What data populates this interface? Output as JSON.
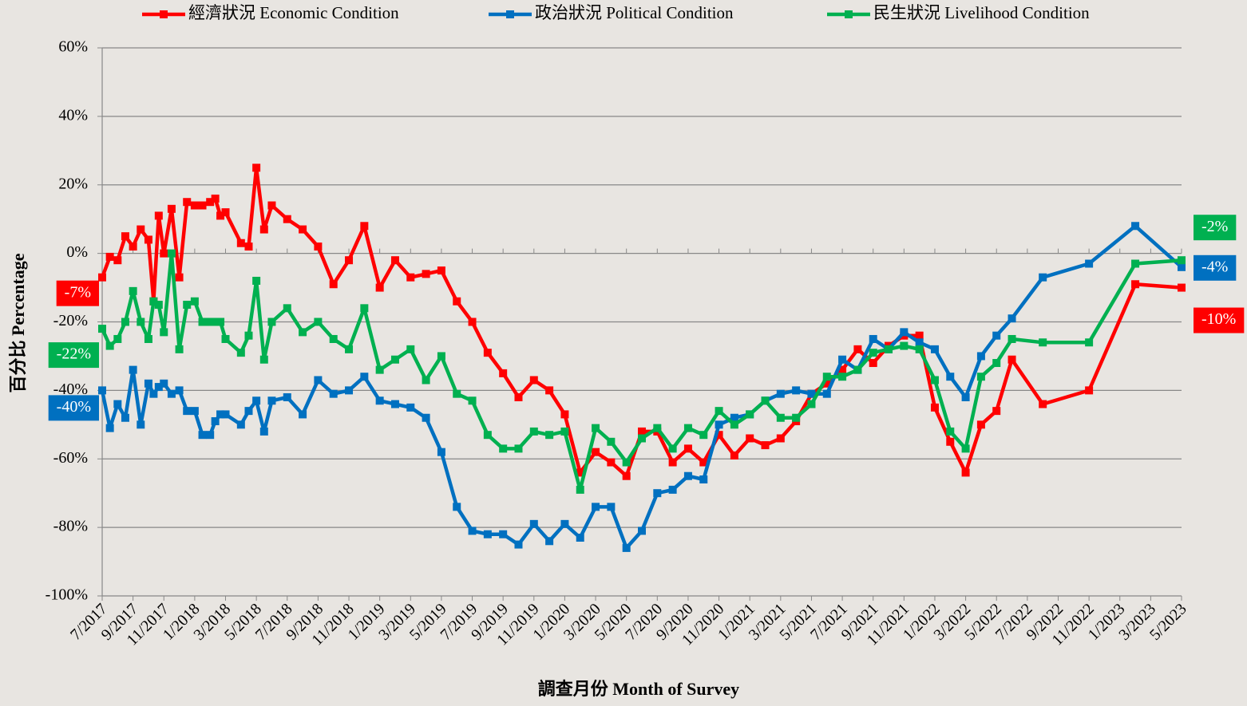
{
  "chart_data": {
    "type": "line",
    "x_label": "調查月份 Month of Survey",
    "y_label": "百分比 Percentage",
    "legend_position": "top",
    "grid": true,
    "ylim": [
      -100,
      60
    ],
    "yticks": [
      {
        "value": -100,
        "label": "-100%"
      },
      {
        "value": -80,
        "label": "-80%"
      },
      {
        "value": -60,
        "label": "-60%"
      },
      {
        "value": -40,
        "label": "-40%"
      },
      {
        "value": -20,
        "label": "-20%"
      },
      {
        "value": 0,
        "label": "0%"
      },
      {
        "value": 20,
        "label": "20%"
      },
      {
        "value": 40,
        "label": "40%"
      },
      {
        "value": 60,
        "label": "60%"
      }
    ],
    "xticks": [
      "7/2017",
      "9/2017",
      "11/2017",
      "1/2018",
      "3/2018",
      "5/2018",
      "7/2018",
      "9/2018",
      "11/2018",
      "1/2019",
      "3/2019",
      "5/2019",
      "7/2019",
      "9/2019",
      "11/2019",
      "1/2020",
      "3/2020",
      "5/2020",
      "7/2020",
      "9/2020",
      "11/2020",
      "1/2021",
      "3/2021",
      "5/2021",
      "7/2021",
      "9/2021",
      "11/2021",
      "1/2022",
      "3/2022",
      "5/2022",
      "7/2022",
      "9/2022",
      "11/2022",
      "1/2023",
      "3/2023",
      "5/2023"
    ],
    "x": [
      "7/2017",
      "7/2017",
      "8/2017",
      "8/2017",
      "9/2017",
      "9/2017",
      "10/2017",
      "10/2017",
      "10/2017",
      "11/2017",
      "11/2017",
      "12/2017",
      "12/2017",
      "1/2018",
      "1/2018",
      "2/2018",
      "2/2018",
      "2/2018",
      "3/2018",
      "4/2018",
      "4/2018",
      "5/2018",
      "5/2018",
      "6/2018",
      "7/2018",
      "8/2018",
      "9/2018",
      "10/2018",
      "11/2018",
      "12/2018",
      "1/2019",
      "2/2019",
      "3/2019",
      "4/2019",
      "5/2019",
      "6/2019",
      "7/2019",
      "8/2019",
      "9/2019",
      "10/2019",
      "11/2019",
      "12/2019",
      "1/2020",
      "2/2020",
      "3/2020",
      "4/2020",
      "5/2020",
      "6/2020",
      "7/2020",
      "8/2020",
      "9/2020",
      "10/2020",
      "11/2020",
      "12/2020",
      "1/2021",
      "2/2021",
      "3/2021",
      "4/2021",
      "5/2021",
      "6/2021",
      "7/2021",
      "8/2021",
      "9/2021",
      "10/2021",
      "11/2021",
      "12/2021",
      "1/2022",
      "2/2022",
      "3/2022",
      "4/2022",
      "5/2022",
      "6/2022",
      "8/2022",
      "11/2022",
      "2/2023",
      "5/2023"
    ],
    "series": [
      {
        "name": "經濟狀況 Economic Condition",
        "color": "#ff0000",
        "values": [
          -7,
          -1,
          -2,
          5,
          2,
          7,
          4,
          -14,
          11,
          0,
          13,
          -7,
          15,
          14,
          14,
          15,
          16,
          11,
          12,
          3,
          2,
          25,
          7,
          14,
          10,
          7,
          2,
          -9,
          -2,
          8,
          -10,
          -2,
          -7,
          -6,
          -5,
          -14,
          -20,
          -29,
          -35,
          -42,
          -37,
          -40,
          -47,
          -64,
          -58,
          -61,
          -65,
          -52,
          -52,
          -61,
          -57,
          -61,
          -53,
          -59,
          -54,
          -56,
          -54,
          -49,
          -41,
          -38,
          -34,
          -28,
          -32,
          -27,
          -24,
          -24,
          -45,
          -55,
          -64,
          -50,
          -46,
          -31,
          -44,
          -40,
          -9,
          -10
        ],
        "value_labels": [
          "-7%",
          null,
          null,
          null,
          null,
          null,
          null,
          null,
          null,
          null,
          null,
          null,
          null,
          null,
          null,
          null,
          null,
          null,
          null,
          null,
          null,
          null,
          null,
          null,
          null,
          null,
          null,
          null,
          null,
          null,
          null,
          null,
          null,
          null,
          null,
          null,
          null,
          null,
          null,
          null,
          null,
          null,
          null,
          null,
          null,
          null,
          null,
          null,
          null,
          null,
          null,
          null,
          null,
          null,
          null,
          null,
          null,
          null,
          null,
          null,
          null,
          null,
          null,
          null,
          null,
          null,
          null,
          null,
          null,
          null,
          null,
          null,
          null,
          null,
          null,
          "-10%"
        ]
      },
      {
        "name": "政治狀況 Political Condition",
        "color": "#0070c0",
        "values": [
          -40,
          -51,
          -44,
          -48,
          -34,
          -50,
          -38,
          -41,
          -39,
          -38,
          -41,
          -40,
          -46,
          -46,
          -53,
          -53,
          -49,
          -47,
          -47,
          -50,
          -46,
          -43,
          -52,
          -43,
          -42,
          -47,
          -37,
          -41,
          -40,
          -36,
          -43,
          -44,
          -45,
          -48,
          -58,
          -74,
          -81,
          -82,
          -82,
          -85,
          -79,
          -84,
          -79,
          -83,
          -74,
          -74,
          -86,
          -81,
          -70,
          -69,
          -65,
          -66,
          -50,
          -48,
          -47,
          -43,
          -41,
          -40,
          -41,
          -41,
          -31,
          -34,
          -25,
          -28,
          -23,
          -26,
          -28,
          -36,
          -42,
          -30,
          -24,
          -19,
          -7,
          -3,
          8,
          -4
        ],
        "value_labels": [
          "-40%",
          null,
          null,
          null,
          null,
          null,
          null,
          null,
          null,
          null,
          null,
          null,
          null,
          null,
          null,
          null,
          null,
          null,
          null,
          null,
          null,
          null,
          null,
          null,
          null,
          null,
          null,
          null,
          null,
          null,
          null,
          null,
          null,
          null,
          null,
          null,
          null,
          null,
          null,
          null,
          null,
          null,
          null,
          null,
          null,
          null,
          null,
          null,
          null,
          null,
          null,
          null,
          null,
          null,
          null,
          null,
          null,
          null,
          null,
          null,
          null,
          null,
          null,
          null,
          null,
          null,
          null,
          null,
          null,
          null,
          null,
          null,
          null,
          null,
          null,
          "-4%"
        ]
      },
      {
        "name": "民生狀況 Livelihood Condition",
        "color": "#00b050",
        "values": [
          -22,
          -27,
          -25,
          -20,
          -11,
          -20,
          -25,
          -14,
          -15,
          -23,
          0,
          -28,
          -15,
          -14,
          -20,
          -20,
          -20,
          -20,
          -25,
          -29,
          -24,
          -8,
          -31,
          -20,
          -16,
          -23,
          -20,
          -25,
          -28,
          -16,
          -34,
          -31,
          -28,
          -37,
          -30,
          -41,
          -43,
          -53,
          -57,
          -57,
          -52,
          -53,
          -52,
          -69,
          -51,
          -55,
          -61,
          -54,
          -51,
          -57,
          -51,
          -53,
          -46,
          -50,
          -47,
          -43,
          -48,
          -48,
          -44,
          -36,
          -36,
          -34,
          -29,
          -28,
          -27,
          -28,
          -37,
          -52,
          -57,
          -36,
          -32,
          -25,
          -26,
          -26,
          -3,
          -2
        ],
        "value_labels": [
          "-22%",
          null,
          null,
          null,
          null,
          null,
          null,
          null,
          null,
          null,
          null,
          null,
          null,
          null,
          null,
          null,
          null,
          null,
          null,
          null,
          null,
          null,
          null,
          null,
          null,
          null,
          null,
          null,
          null,
          null,
          null,
          null,
          null,
          null,
          null,
          null,
          null,
          null,
          null,
          null,
          null,
          null,
          null,
          null,
          null,
          null,
          null,
          null,
          null,
          null,
          null,
          null,
          null,
          null,
          null,
          null,
          null,
          null,
          null,
          null,
          null,
          null,
          null,
          null,
          null,
          null,
          null,
          null,
          null,
          null,
          null,
          null,
          null,
          null,
          null,
          "-2%"
        ]
      }
    ]
  }
}
